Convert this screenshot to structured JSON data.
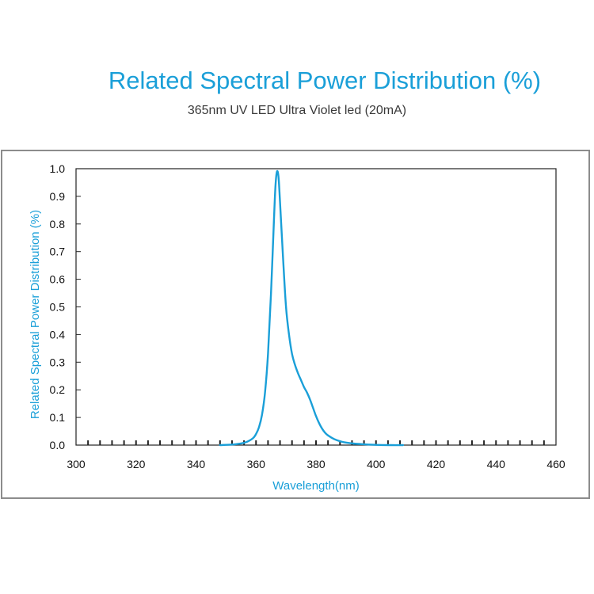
{
  "header": {
    "title": "Related Spectral Power Distribution (%)",
    "subtitle": "365nm UV LED Ultra Violet led (20mA)"
  },
  "chart_data": {
    "type": "line",
    "title": "Related Spectral Power Distribution (%)",
    "subtitle": "365nm UV LED Ultra Violet led (20mA)",
    "xlabel": "Wavelength(nm)",
    "ylabel": "Related Spectral Power Distribution (%)",
    "xlim": [
      300,
      460
    ],
    "ylim": [
      0,
      1.0
    ],
    "x_ticks": [
      "300",
      "320",
      "340",
      "360",
      "380",
      "400",
      "420",
      "440",
      "460"
    ],
    "y_ticks": [
      "0.0",
      "0.1",
      "0.2",
      "0.3",
      "0.4",
      "0.5",
      "0.6",
      "0.7",
      "0.8",
      "0.9",
      "1.0"
    ],
    "grid": false,
    "line_color": "#1a9fd8",
    "series": [
      {
        "x": [
          348,
          352,
          355,
          357,
          359,
          360,
          361,
          362,
          363,
          364,
          365,
          366,
          366.5,
          367,
          367.5,
          368,
          369,
          370,
          371,
          372,
          373,
          374,
          375,
          376,
          377,
          378,
          379,
          380,
          381,
          382,
          383,
          384,
          386,
          388,
          390,
          393,
          396,
          400,
          405,
          409
        ],
        "y": [
          0.0,
          0.002,
          0.006,
          0.012,
          0.025,
          0.04,
          0.065,
          0.11,
          0.19,
          0.33,
          0.55,
          0.82,
          0.94,
          0.99,
          0.97,
          0.88,
          0.68,
          0.5,
          0.4,
          0.33,
          0.29,
          0.26,
          0.235,
          0.21,
          0.19,
          0.165,
          0.135,
          0.105,
          0.08,
          0.06,
          0.045,
          0.035,
          0.022,
          0.014,
          0.009,
          0.005,
          0.003,
          0.001,
          0.0,
          0.0
        ]
      }
    ]
  }
}
